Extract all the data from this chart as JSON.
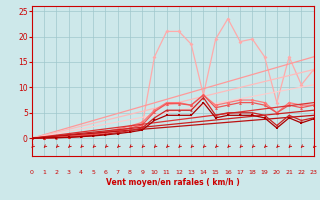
{
  "bg_color": "#cde8ea",
  "grid_color": "#a0c8cc",
  "x_label": "Vent moyen/en rafales ( km/h )",
  "x_ticks": [
    0,
    1,
    2,
    3,
    4,
    5,
    6,
    7,
    8,
    9,
    10,
    11,
    12,
    13,
    14,
    15,
    16,
    17,
    18,
    19,
    20,
    21,
    22,
    23
  ],
  "y_ticks": [
    0,
    5,
    10,
    15,
    20,
    25
  ],
  "ylim": [
    -3.5,
    26
  ],
  "xlim": [
    0,
    23
  ],
  "lines": [
    {
      "x": [
        0,
        1,
        2,
        3,
        4,
        5,
        6,
        7,
        8,
        9,
        10,
        11,
        12,
        13,
        14,
        15,
        16,
        17,
        18,
        19,
        20,
        21,
        22,
        23
      ],
      "y": [
        0,
        0.1,
        0.2,
        0.3,
        0.5,
        0.7,
        1.0,
        1.4,
        1.9,
        2.5,
        16.0,
        21.0,
        21.0,
        18.5,
        8.5,
        19.5,
        23.5,
        19.0,
        19.5,
        16.0,
        7.0,
        16.0,
        10.5,
        13.5
      ],
      "color": "#ffaaaa",
      "lw": 0.9,
      "marker": "D",
      "ms": 2.0
    },
    {
      "x": [
        0,
        23
      ],
      "y": [
        0,
        16.0
      ],
      "color": "#ff9999",
      "lw": 0.9,
      "marker": null,
      "ms": 0
    },
    {
      "x": [
        0,
        23
      ],
      "y": [
        0,
        13.5
      ],
      "color": "#ffbbbb",
      "lw": 0.9,
      "marker": null,
      "ms": 0
    },
    {
      "x": [
        0,
        23
      ],
      "y": [
        0,
        10.5
      ],
      "color": "#ffcccc",
      "lw": 0.8,
      "marker": null,
      "ms": 0
    },
    {
      "x": [
        0,
        1,
        2,
        3,
        4,
        5,
        6,
        7,
        8,
        9,
        10,
        11,
        12,
        13,
        14,
        15,
        16,
        17,
        18,
        19,
        20,
        21,
        22,
        23
      ],
      "y": [
        0,
        0.1,
        0.2,
        0.4,
        0.6,
        0.9,
        1.3,
        1.8,
        2.4,
        3.1,
        5.5,
        7.0,
        7.0,
        6.5,
        8.5,
        6.5,
        7.0,
        7.5,
        7.5,
        7.0,
        5.0,
        7.0,
        6.5,
        6.5
      ],
      "color": "#ff7777",
      "lw": 0.9,
      "marker": "D",
      "ms": 2.0
    },
    {
      "x": [
        0,
        1,
        2,
        3,
        4,
        5,
        6,
        7,
        8,
        9,
        10,
        11,
        12,
        13,
        14,
        15,
        16,
        17,
        18,
        19,
        20,
        21,
        22,
        23
      ],
      "y": [
        0,
        0.05,
        0.15,
        0.3,
        0.5,
        0.8,
        1.1,
        1.5,
        2.0,
        2.6,
        5.2,
        6.8,
        6.8,
        6.5,
        8.5,
        6.0,
        6.5,
        7.0,
        7.0,
        6.5,
        5.0,
        6.5,
        6.0,
        6.5
      ],
      "color": "#ee5555",
      "lw": 0.9,
      "marker": "^",
      "ms": 2.0
    },
    {
      "x": [
        0,
        23
      ],
      "y": [
        0,
        7.0
      ],
      "color": "#dd3333",
      "lw": 0.9,
      "marker": null,
      "ms": 0
    },
    {
      "x": [
        0,
        23
      ],
      "y": [
        0,
        5.5
      ],
      "color": "#cc2222",
      "lw": 0.9,
      "marker": null,
      "ms": 0
    },
    {
      "x": [
        0,
        23
      ],
      "y": [
        0,
        4.5
      ],
      "color": "#bb1111",
      "lw": 0.9,
      "marker": null,
      "ms": 0
    },
    {
      "x": [
        0,
        1,
        2,
        3,
        4,
        5,
        6,
        7,
        8,
        9,
        10,
        11,
        12,
        13,
        14,
        15,
        16,
        17,
        18,
        19,
        20,
        21,
        22,
        23
      ],
      "y": [
        0,
        0.05,
        0.1,
        0.2,
        0.35,
        0.55,
        0.8,
        1.1,
        1.5,
        2.0,
        4.0,
        5.5,
        5.5,
        5.5,
        8.0,
        4.5,
        5.0,
        5.0,
        5.0,
        4.5,
        2.5,
        4.5,
        3.5,
        4.0
      ],
      "color": "#cc2222",
      "lw": 0.9,
      "marker": "^",
      "ms": 1.8
    },
    {
      "x": [
        0,
        1,
        2,
        3,
        4,
        5,
        6,
        7,
        8,
        9,
        10,
        11,
        12,
        13,
        14,
        15,
        16,
        17,
        18,
        19,
        20,
        21,
        22,
        23
      ],
      "y": [
        0,
        0.05,
        0.1,
        0.15,
        0.3,
        0.45,
        0.65,
        0.9,
        1.2,
        1.6,
        3.5,
        4.5,
        4.5,
        4.5,
        7.0,
        4.0,
        4.5,
        4.5,
        4.5,
        4.0,
        2.0,
        4.0,
        3.0,
        3.8
      ],
      "color": "#aa0000",
      "lw": 0.9,
      "marker": "s",
      "ms": 1.8
    }
  ],
  "arrow_color": "#cc0000",
  "xlabel_color": "#cc0000",
  "tick_color": "#cc0000",
  "spine_color": "#cc0000"
}
